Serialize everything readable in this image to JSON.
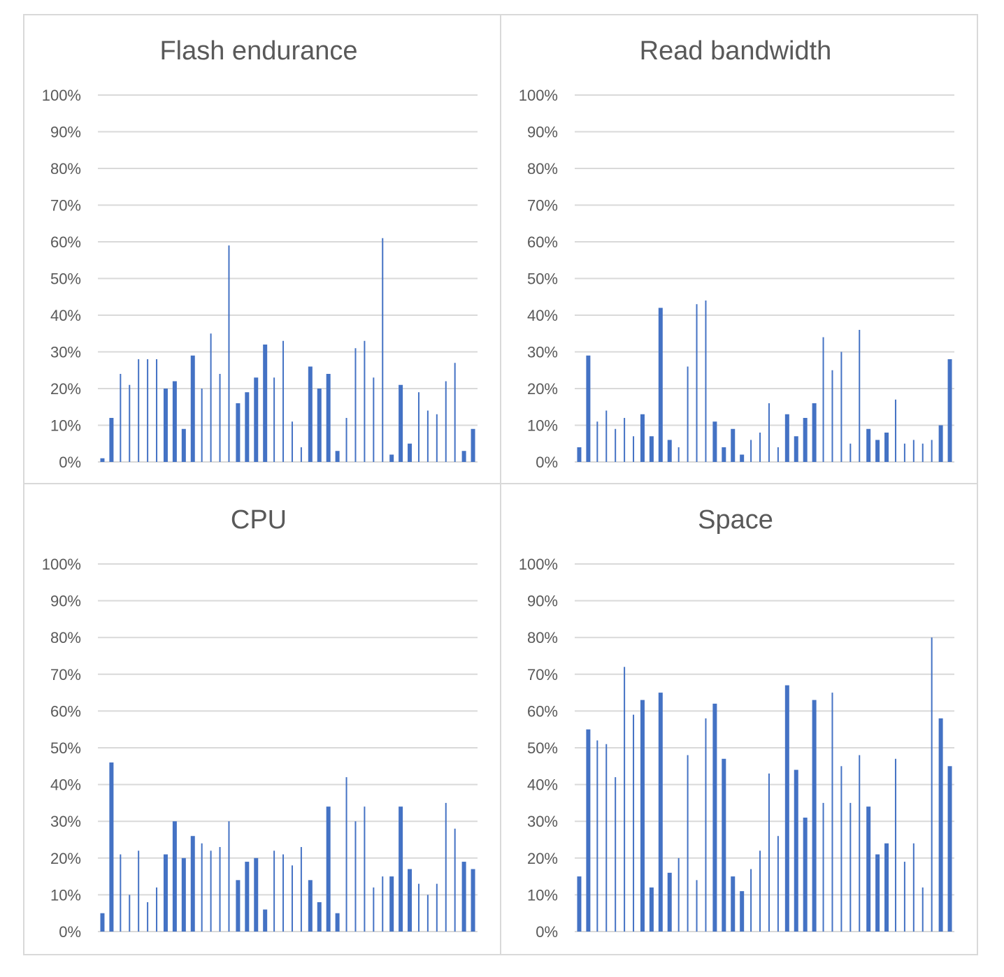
{
  "chart_data": [
    {
      "type": "bar",
      "title": "Flash endurance",
      "xlabel": "",
      "ylabel": "",
      "ylim": [
        0,
        100
      ],
      "yticks": [
        "0%",
        "10%",
        "20%",
        "30%",
        "40%",
        "50%",
        "60%",
        "70%",
        "80%",
        "90%",
        "100%"
      ],
      "grid": true,
      "color": "#4472c4",
      "values": [
        1,
        12,
        24,
        21,
        28,
        28,
        28,
        20,
        22,
        9,
        29,
        20,
        35,
        24,
        59,
        16,
        19,
        23,
        32,
        23,
        33,
        11,
        4,
        26,
        20,
        24,
        3,
        12,
        31,
        33,
        23,
        61,
        2,
        21,
        5,
        19,
        14,
        13,
        22,
        27,
        3,
        9
      ]
    },
    {
      "type": "bar",
      "title": "Read bandwidth",
      "xlabel": "",
      "ylabel": "",
      "ylim": [
        0,
        100
      ],
      "yticks": [
        "0%",
        "10%",
        "20%",
        "30%",
        "40%",
        "50%",
        "60%",
        "70%",
        "80%",
        "90%",
        "100%"
      ],
      "grid": true,
      "color": "#4472c4",
      "values": [
        4,
        29,
        11,
        14,
        9,
        12,
        7,
        13,
        7,
        42,
        6,
        4,
        26,
        43,
        44,
        11,
        4,
        9,
        2,
        6,
        8,
        16,
        4,
        13,
        7,
        12,
        16,
        34,
        25,
        30,
        5,
        36,
        9,
        6,
        8,
        17,
        5,
        6,
        5,
        6,
        10,
        28
      ]
    },
    {
      "type": "bar",
      "title": "CPU",
      "xlabel": "",
      "ylabel": "",
      "ylim": [
        0,
        100
      ],
      "yticks": [
        "0%",
        "10%",
        "20%",
        "30%",
        "40%",
        "50%",
        "60%",
        "70%",
        "80%",
        "90%",
        "100%"
      ],
      "grid": true,
      "color": "#4472c4",
      "values": [
        5,
        46,
        21,
        10,
        22,
        8,
        12,
        21,
        30,
        20,
        26,
        24,
        22,
        23,
        30,
        14,
        19,
        20,
        6,
        22,
        21,
        18,
        23,
        14,
        8,
        34,
        5,
        42,
        30,
        34,
        12,
        15,
        15,
        34,
        17,
        13,
        10,
        13,
        35,
        28,
        19,
        17
      ]
    },
    {
      "type": "bar",
      "title": "Space",
      "xlabel": "",
      "ylabel": "",
      "ylim": [
        0,
        100
      ],
      "yticks": [
        "0%",
        "10%",
        "20%",
        "30%",
        "40%",
        "50%",
        "60%",
        "70%",
        "80%",
        "90%",
        "100%"
      ],
      "grid": true,
      "color": "#4472c4",
      "values": [
        15,
        55,
        52,
        51,
        42,
        72,
        59,
        63,
        12,
        65,
        16,
        20,
        48,
        14,
        58,
        62,
        47,
        15,
        11,
        17,
        22,
        43,
        26,
        67,
        44,
        31,
        63,
        35,
        65,
        45,
        35,
        48,
        34,
        21,
        24,
        47,
        19,
        24,
        12,
        80,
        58,
        45
      ]
    }
  ]
}
